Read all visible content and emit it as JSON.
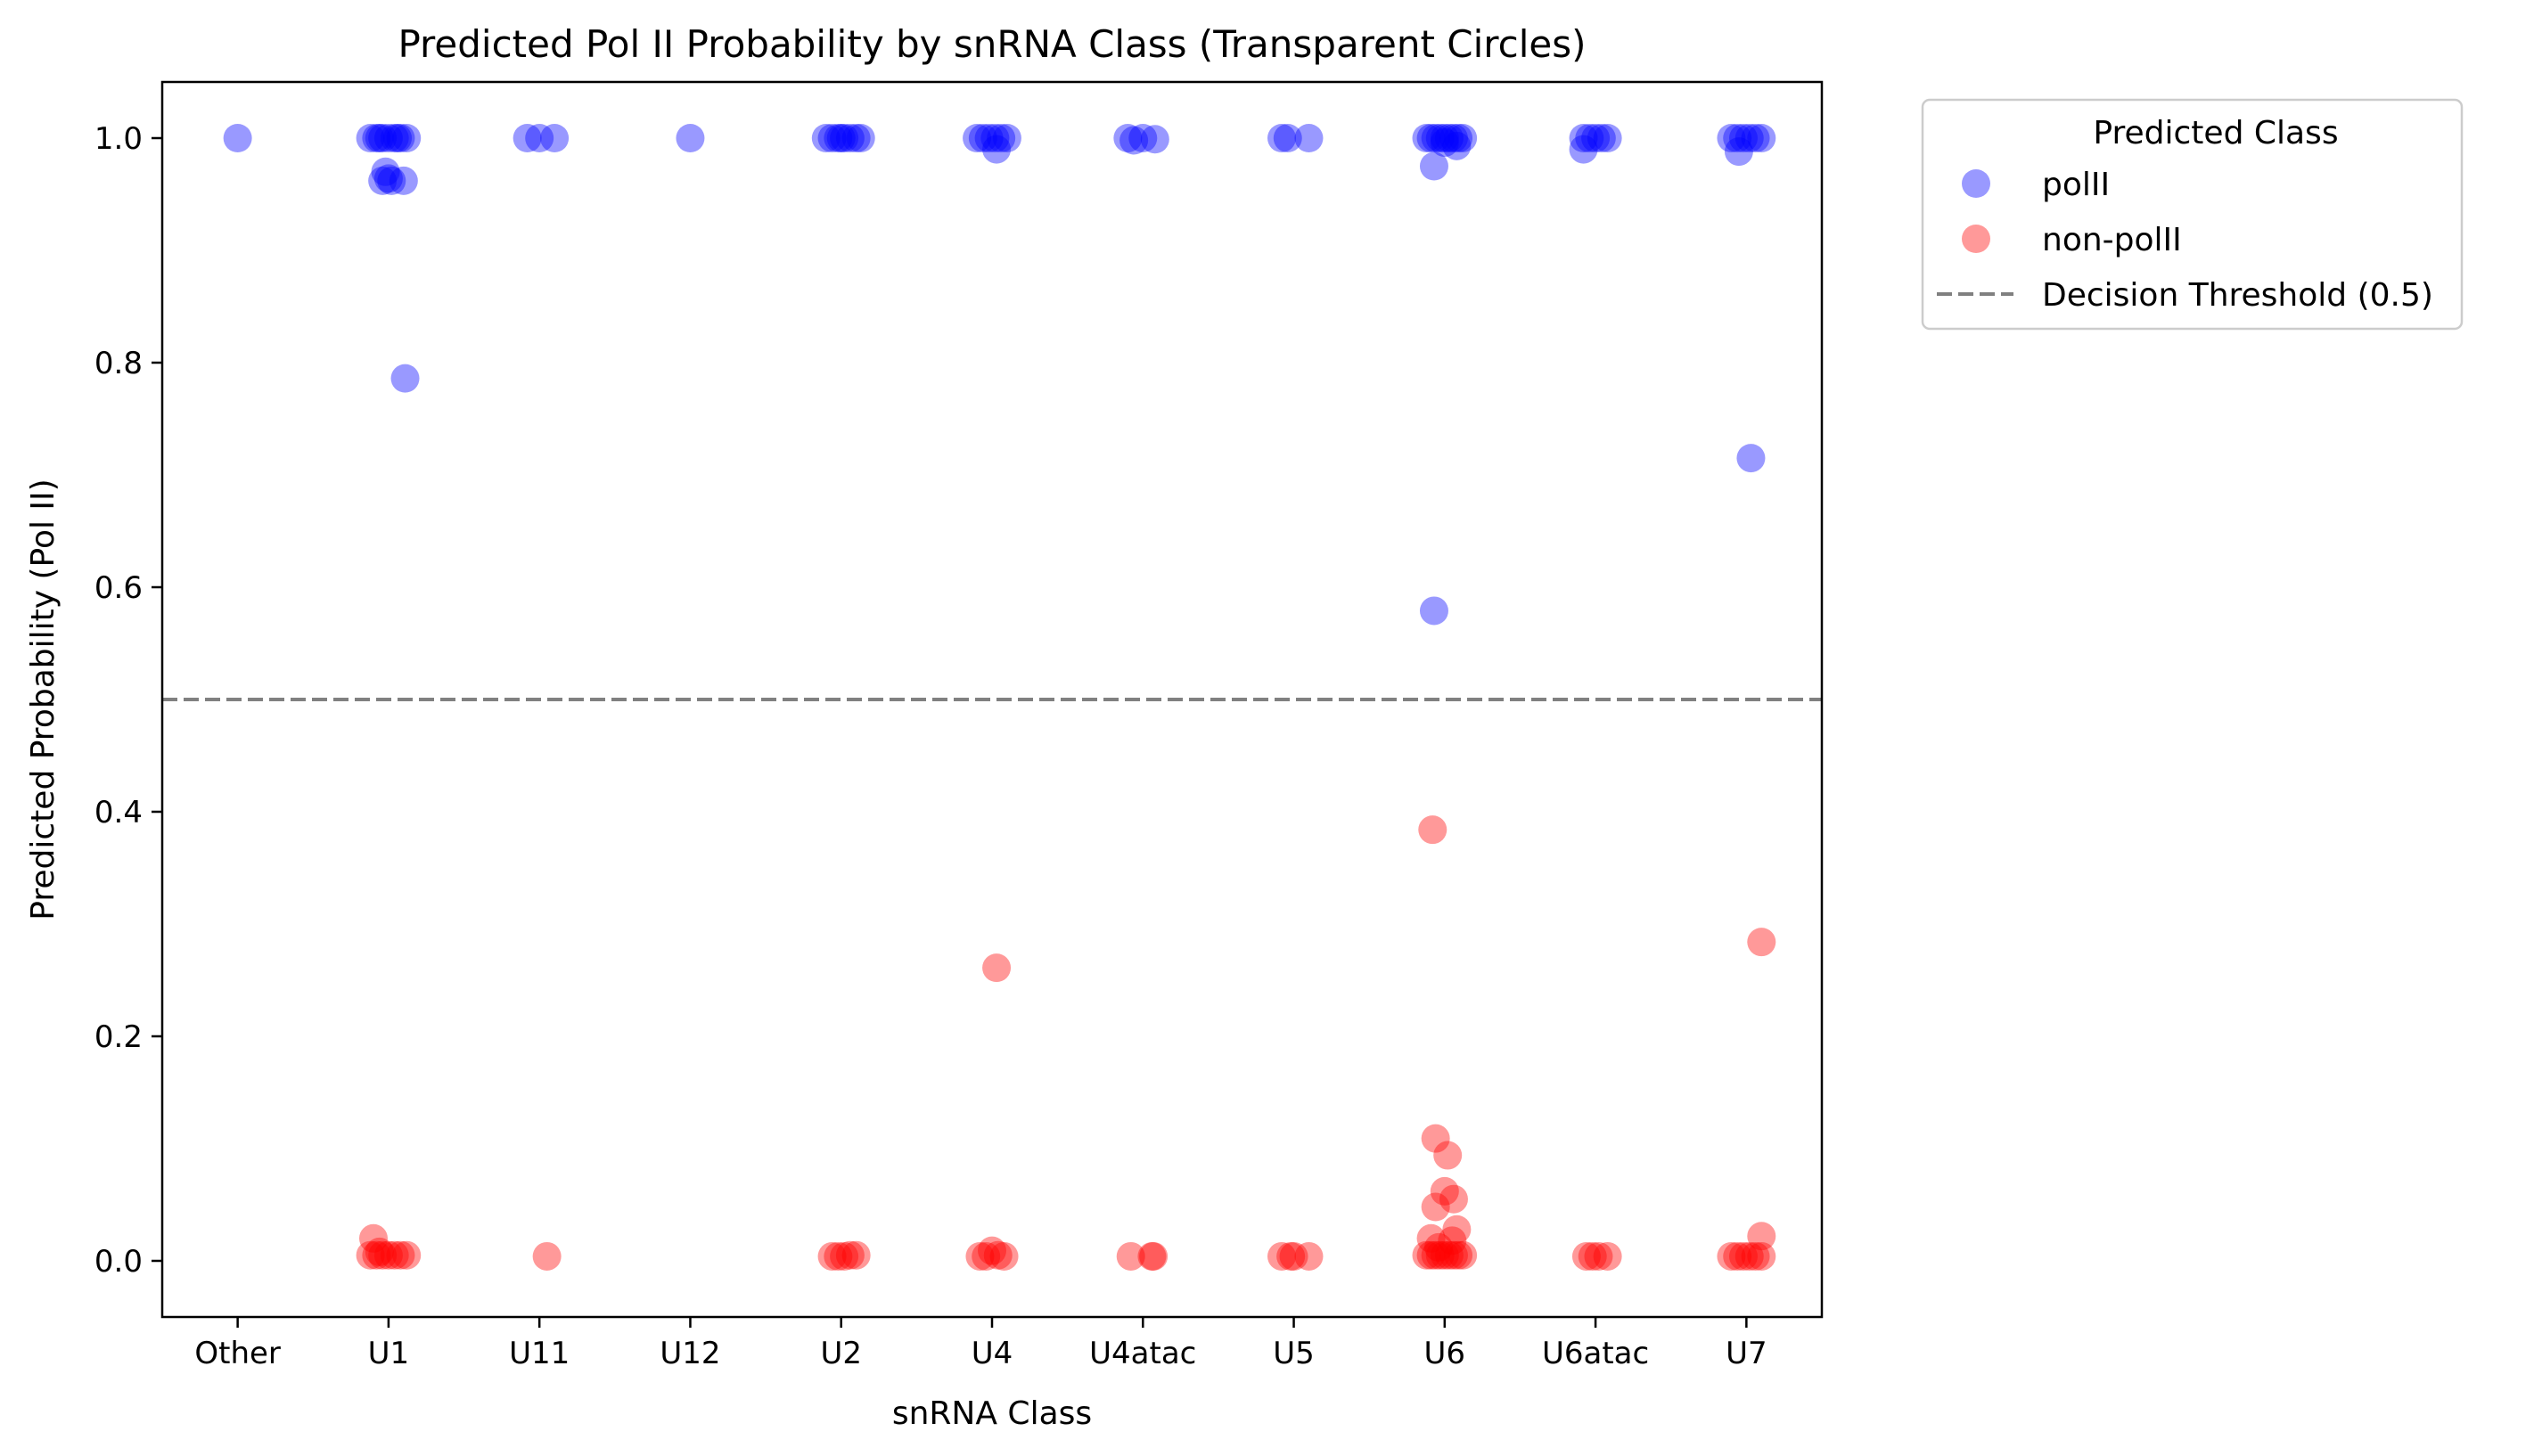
{
  "chart_data": {
    "type": "scatter",
    "title": "Predicted Pol II Probability by snRNA Class (Transparent Circles)",
    "xlabel": "snRNA Class",
    "ylabel": "Predicted Probability (Pol II)",
    "categories": [
      "Other",
      "U1",
      "U11",
      "U12",
      "U2",
      "U4",
      "U4atac",
      "U5",
      "U6",
      "U6atac",
      "U7"
    ],
    "ylim": [
      -0.05,
      1.05
    ],
    "yticks": [
      "0.0",
      "0.2",
      "0.4",
      "0.6",
      "0.8",
      "1.0"
    ],
    "grid": false,
    "legend": {
      "title": "Predicted Class",
      "placement": "outside-top-right",
      "entries": [
        {
          "label": "polII",
          "kind": "marker",
          "color": "#0000ff"
        },
        {
          "label": "non-polII",
          "kind": "marker",
          "color": "#ff0000"
        },
        {
          "label": "Decision Threshold (0.5)",
          "kind": "dashed-line",
          "color": "#808080"
        }
      ]
    },
    "threshold": {
      "label": "Decision Threshold (0.5)",
      "y": 0.5,
      "color": "#808080"
    },
    "series": [
      {
        "name": "polII",
        "color": "#0000ff",
        "opacity": 0.4,
        "points": [
          {
            "x": "Other",
            "offset": 0.0,
            "y": 1.0
          },
          {
            "x": "U1",
            "offset": -0.12,
            "y": 1.0
          },
          {
            "x": "U1",
            "offset": -0.08,
            "y": 1.0
          },
          {
            "x": "U1",
            "offset": -0.04,
            "y": 1.0
          },
          {
            "x": "U1",
            "offset": 0.0,
            "y": 1.0
          },
          {
            "x": "U1",
            "offset": 0.04,
            "y": 1.0
          },
          {
            "x": "U1",
            "offset": 0.08,
            "y": 1.0
          },
          {
            "x": "U1",
            "offset": 0.12,
            "y": 1.0
          },
          {
            "x": "U1",
            "offset": -0.06,
            "y": 1.0
          },
          {
            "x": "U1",
            "offset": 0.06,
            "y": 1.0
          },
          {
            "x": "U1",
            "offset": -0.02,
            "y": 0.97
          },
          {
            "x": "U1",
            "offset": -0.04,
            "y": 0.962
          },
          {
            "x": "U1",
            "offset": 0.02,
            "y": 0.962
          },
          {
            "x": "U1",
            "offset": 0.1,
            "y": 0.962
          },
          {
            "x": "U1",
            "offset": 0.0,
            "y": 0.964
          },
          {
            "x": "U1",
            "offset": 0.11,
            "y": 0.786
          },
          {
            "x": "U11",
            "offset": -0.08,
            "y": 1.0
          },
          {
            "x": "U11",
            "offset": 0.0,
            "y": 1.0
          },
          {
            "x": "U11",
            "offset": 0.1,
            "y": 1.0
          },
          {
            "x": "U12",
            "offset": 0.0,
            "y": 1.0
          },
          {
            "x": "U2",
            "offset": -0.1,
            "y": 1.0
          },
          {
            "x": "U2",
            "offset": -0.06,
            "y": 1.0
          },
          {
            "x": "U2",
            "offset": -0.02,
            "y": 1.0
          },
          {
            "x": "U2",
            "offset": 0.02,
            "y": 1.0
          },
          {
            "x": "U2",
            "offset": 0.06,
            "y": 1.0
          },
          {
            "x": "U2",
            "offset": 0.1,
            "y": 1.0
          },
          {
            "x": "U2",
            "offset": 0.13,
            "y": 1.0
          },
          {
            "x": "U2",
            "offset": 0.0,
            "y": 1.0
          },
          {
            "x": "U4",
            "offset": -0.1,
            "y": 1.0
          },
          {
            "x": "U4",
            "offset": -0.06,
            "y": 1.0
          },
          {
            "x": "U4",
            "offset": -0.02,
            "y": 1.0
          },
          {
            "x": "U4",
            "offset": 0.02,
            "y": 1.0
          },
          {
            "x": "U4",
            "offset": 0.06,
            "y": 1.0
          },
          {
            "x": "U4",
            "offset": 0.1,
            "y": 1.0
          },
          {
            "x": "U4",
            "offset": 0.03,
            "y": 0.99
          },
          {
            "x": "U4atac",
            "offset": -0.1,
            "y": 1.0
          },
          {
            "x": "U4atac",
            "offset": -0.06,
            "y": 0.998
          },
          {
            "x": "U4atac",
            "offset": 0.0,
            "y": 1.0
          },
          {
            "x": "U4atac",
            "offset": 0.08,
            "y": 0.999
          },
          {
            "x": "U5",
            "offset": -0.08,
            "y": 1.0
          },
          {
            "x": "U5",
            "offset": -0.04,
            "y": 1.0
          },
          {
            "x": "U5",
            "offset": 0.1,
            "y": 1.0
          },
          {
            "x": "U6",
            "offset": -0.12,
            "y": 1.0
          },
          {
            "x": "U6",
            "offset": -0.09,
            "y": 1.0
          },
          {
            "x": "U6",
            "offset": -0.06,
            "y": 1.0
          },
          {
            "x": "U6",
            "offset": -0.03,
            "y": 1.0
          },
          {
            "x": "U6",
            "offset": 0.0,
            "y": 1.0
          },
          {
            "x": "U6",
            "offset": 0.03,
            "y": 1.0
          },
          {
            "x": "U6",
            "offset": 0.06,
            "y": 1.0
          },
          {
            "x": "U6",
            "offset": 0.09,
            "y": 1.0
          },
          {
            "x": "U6",
            "offset": 0.12,
            "y": 1.0
          },
          {
            "x": "U6",
            "offset": 0.0,
            "y": 0.996
          },
          {
            "x": "U6",
            "offset": 0.08,
            "y": 0.993
          },
          {
            "x": "U6",
            "offset": -0.07,
            "y": 0.975
          },
          {
            "x": "U6",
            "offset": -0.07,
            "y": 0.579
          },
          {
            "x": "U6atac",
            "offset": -0.08,
            "y": 1.0
          },
          {
            "x": "U6atac",
            "offset": -0.04,
            "y": 1.0
          },
          {
            "x": "U6atac",
            "offset": 0.0,
            "y": 1.0
          },
          {
            "x": "U6atac",
            "offset": 0.04,
            "y": 1.0
          },
          {
            "x": "U6atac",
            "offset": 0.08,
            "y": 1.0
          },
          {
            "x": "U6atac",
            "offset": -0.08,
            "y": 0.99
          },
          {
            "x": "U7",
            "offset": -0.1,
            "y": 1.0
          },
          {
            "x": "U7",
            "offset": -0.06,
            "y": 1.0
          },
          {
            "x": "U7",
            "offset": -0.02,
            "y": 1.0
          },
          {
            "x": "U7",
            "offset": 0.02,
            "y": 1.0
          },
          {
            "x": "U7",
            "offset": 0.06,
            "y": 1.0
          },
          {
            "x": "U7",
            "offset": 0.1,
            "y": 1.0
          },
          {
            "x": "U7",
            "offset": -0.05,
            "y": 0.988
          },
          {
            "x": "U7",
            "offset": 0.03,
            "y": 0.715
          }
        ]
      },
      {
        "name": "non-polII",
        "color": "#ff0000",
        "opacity": 0.4,
        "points": [
          {
            "x": "U1",
            "offset": -0.1,
            "y": 0.02
          },
          {
            "x": "U1",
            "offset": -0.12,
            "y": 0.005
          },
          {
            "x": "U1",
            "offset": -0.08,
            "y": 0.005
          },
          {
            "x": "U1",
            "offset": -0.04,
            "y": 0.005
          },
          {
            "x": "U1",
            "offset": 0.0,
            "y": 0.005
          },
          {
            "x": "U1",
            "offset": 0.04,
            "y": 0.005
          },
          {
            "x": "U1",
            "offset": 0.08,
            "y": 0.005
          },
          {
            "x": "U1",
            "offset": 0.12,
            "y": 0.005
          },
          {
            "x": "U1",
            "offset": -0.06,
            "y": 0.008
          },
          {
            "x": "U11",
            "offset": 0.05,
            "y": 0.004
          },
          {
            "x": "U2",
            "offset": -0.06,
            "y": 0.004
          },
          {
            "x": "U2",
            "offset": -0.02,
            "y": 0.004
          },
          {
            "x": "U2",
            "offset": 0.02,
            "y": 0.004
          },
          {
            "x": "U2",
            "offset": 0.06,
            "y": 0.005
          },
          {
            "x": "U2",
            "offset": 0.1,
            "y": 0.005
          },
          {
            "x": "U4",
            "offset": -0.08,
            "y": 0.004
          },
          {
            "x": "U4",
            "offset": -0.04,
            "y": 0.004
          },
          {
            "x": "U4",
            "offset": 0.0,
            "y": 0.009
          },
          {
            "x": "U4",
            "offset": 0.04,
            "y": 0.005
          },
          {
            "x": "U4",
            "offset": 0.08,
            "y": 0.004
          },
          {
            "x": "U4",
            "offset": 0.03,
            "y": 0.261
          },
          {
            "x": "U4atac",
            "offset": -0.08,
            "y": 0.004
          },
          {
            "x": "U4atac",
            "offset": 0.06,
            "y": 0.004
          },
          {
            "x": "U4atac",
            "offset": 0.07,
            "y": 0.004
          },
          {
            "x": "U5",
            "offset": -0.08,
            "y": 0.004
          },
          {
            "x": "U5",
            "offset": -0.02,
            "y": 0.004
          },
          {
            "x": "U5",
            "offset": 0.0,
            "y": 0.004
          },
          {
            "x": "U5",
            "offset": 0.1,
            "y": 0.004
          },
          {
            "x": "U6",
            "offset": -0.09,
            "y": 0.02
          },
          {
            "x": "U6",
            "offset": -0.12,
            "y": 0.005
          },
          {
            "x": "U6",
            "offset": -0.09,
            "y": 0.005
          },
          {
            "x": "U6",
            "offset": -0.06,
            "y": 0.005
          },
          {
            "x": "U6",
            "offset": -0.03,
            "y": 0.005
          },
          {
            "x": "U6",
            "offset": 0.0,
            "y": 0.005
          },
          {
            "x": "U6",
            "offset": 0.03,
            "y": 0.005
          },
          {
            "x": "U6",
            "offset": 0.06,
            "y": 0.005
          },
          {
            "x": "U6",
            "offset": 0.09,
            "y": 0.005
          },
          {
            "x": "U6",
            "offset": 0.12,
            "y": 0.005
          },
          {
            "x": "U6",
            "offset": -0.04,
            "y": 0.012
          },
          {
            "x": "U6",
            "offset": 0.05,
            "y": 0.018
          },
          {
            "x": "U6",
            "offset": 0.08,
            "y": 0.028
          },
          {
            "x": "U6",
            "offset": -0.06,
            "y": 0.048
          },
          {
            "x": "U6",
            "offset": 0.06,
            "y": 0.055
          },
          {
            "x": "U6",
            "offset": 0.0,
            "y": 0.062
          },
          {
            "x": "U6",
            "offset": 0.02,
            "y": 0.094
          },
          {
            "x": "U6",
            "offset": -0.06,
            "y": 0.109
          },
          {
            "x": "U6",
            "offset": -0.08,
            "y": 0.384
          },
          {
            "x": "U6atac",
            "offset": -0.06,
            "y": 0.004
          },
          {
            "x": "U6atac",
            "offset": -0.02,
            "y": 0.004
          },
          {
            "x": "U6atac",
            "offset": 0.02,
            "y": 0.004
          },
          {
            "x": "U6atac",
            "offset": 0.08,
            "y": 0.004
          },
          {
            "x": "U7",
            "offset": -0.1,
            "y": 0.004
          },
          {
            "x": "U7",
            "offset": -0.06,
            "y": 0.004
          },
          {
            "x": "U7",
            "offset": -0.02,
            "y": 0.004
          },
          {
            "x": "U7",
            "offset": 0.02,
            "y": 0.004
          },
          {
            "x": "U7",
            "offset": 0.06,
            "y": 0.004
          },
          {
            "x": "U7",
            "offset": 0.1,
            "y": 0.004
          },
          {
            "x": "U7",
            "offset": 0.1,
            "y": 0.022
          },
          {
            "x": "U7",
            "offset": 0.1,
            "y": 0.284
          }
        ]
      }
    ]
  }
}
